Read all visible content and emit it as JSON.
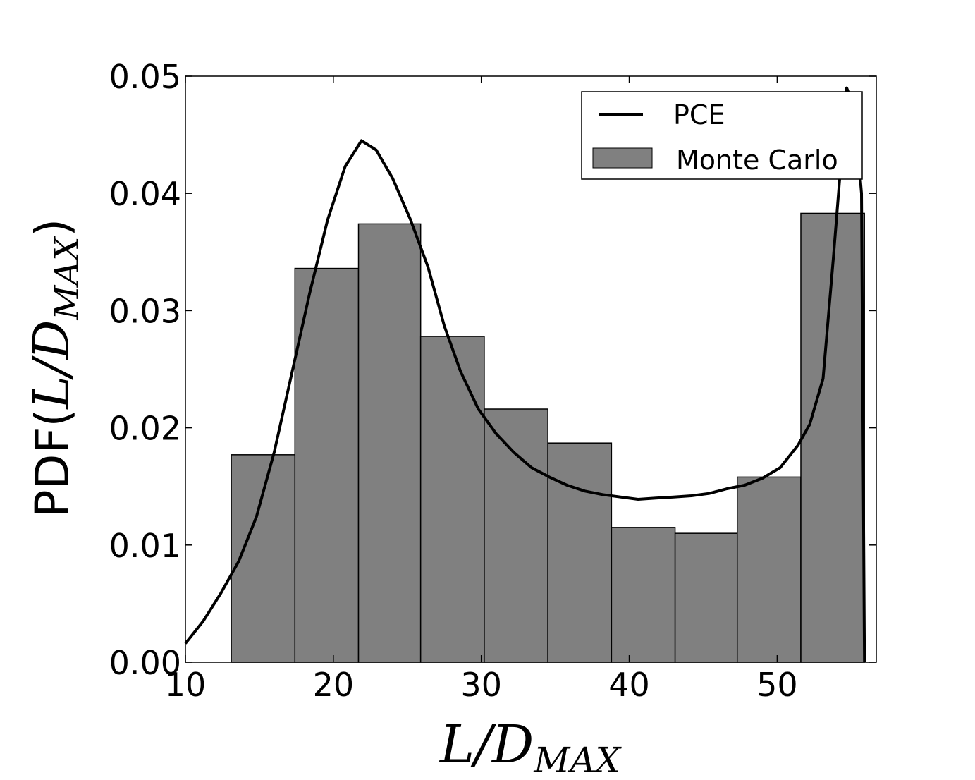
{
  "chart_data": {
    "type": "bar",
    "xlabel": {
      "main": "L/D",
      "sub": "MAX"
    },
    "ylabel": {
      "prefix": "PDF",
      "main": "L/D",
      "sub": "MAX"
    },
    "xlim": [
      10,
      56.7
    ],
    "ylim": [
      0,
      0.05
    ],
    "x_ticks": [
      10,
      20,
      30,
      40,
      50
    ],
    "x_tick_labels": [
      "10",
      "20",
      "30",
      "40",
      "50"
    ],
    "y_ticks": [
      0,
      0.01,
      0.02,
      0.03,
      0.04,
      0.05
    ],
    "y_tick_labels": [
      "0.00",
      "0.01",
      "0.02",
      "0.03",
      "0.04",
      "0.05"
    ],
    "grid": false,
    "legend_position": "top-right",
    "series": [
      {
        "name": "Monte Carlo",
        "kind": "histogram",
        "color": "#808080",
        "bins": [
          {
            "x0": 13.1,
            "x1": 17.4,
            "value": 0.0177
          },
          {
            "x0": 17.4,
            "x1": 21.7,
            "value": 0.0336
          },
          {
            "x0": 21.7,
            "x1": 25.9,
            "value": 0.0374
          },
          {
            "x0": 25.9,
            "x1": 30.2,
            "value": 0.0278
          },
          {
            "x0": 30.2,
            "x1": 34.5,
            "value": 0.0216
          },
          {
            "x0": 34.5,
            "x1": 38.8,
            "value": 0.0187
          },
          {
            "x0": 38.8,
            "x1": 43.1,
            "value": 0.0115
          },
          {
            "x0": 43.1,
            "x1": 47.3,
            "value": 0.011
          },
          {
            "x0": 47.3,
            "x1": 51.6,
            "value": 0.0158
          },
          {
            "x0": 51.6,
            "x1": 55.9,
            "value": 0.0383
          }
        ]
      },
      {
        "name": "PCE",
        "kind": "line",
        "color": "#000000",
        "x": [
          10.0,
          11.2,
          12.4,
          13.6,
          14.8,
          16.0,
          17.2,
          18.4,
          19.6,
          20.8,
          21.9,
          22.9,
          24.0,
          25.2,
          26.4,
          27.5,
          28.6,
          29.8,
          31.0,
          32.2,
          33.4,
          34.6,
          35.8,
          37.0,
          38.2,
          39.4,
          40.6,
          41.8,
          43.0,
          44.2,
          45.4,
          46.6,
          47.8,
          49.0,
          50.2,
          51.4,
          52.2,
          53.1,
          53.8,
          54.4,
          54.7,
          55.0,
          55.3,
          55.7,
          55.9
        ],
        "y": [
          0.0016,
          0.0035,
          0.0059,
          0.0086,
          0.0124,
          0.0179,
          0.0247,
          0.0315,
          0.0377,
          0.0423,
          0.0445,
          0.0437,
          0.0413,
          0.0378,
          0.0337,
          0.0287,
          0.0248,
          0.0216,
          0.0195,
          0.0179,
          0.0166,
          0.0158,
          0.0151,
          0.0146,
          0.0143,
          0.0141,
          0.0139,
          0.014,
          0.0141,
          0.0142,
          0.0144,
          0.0148,
          0.0151,
          0.0157,
          0.0166,
          0.0185,
          0.0203,
          0.0242,
          0.0345,
          0.044,
          0.049,
          0.048,
          0.046,
          0.04,
          0.0
        ]
      }
    ]
  }
}
